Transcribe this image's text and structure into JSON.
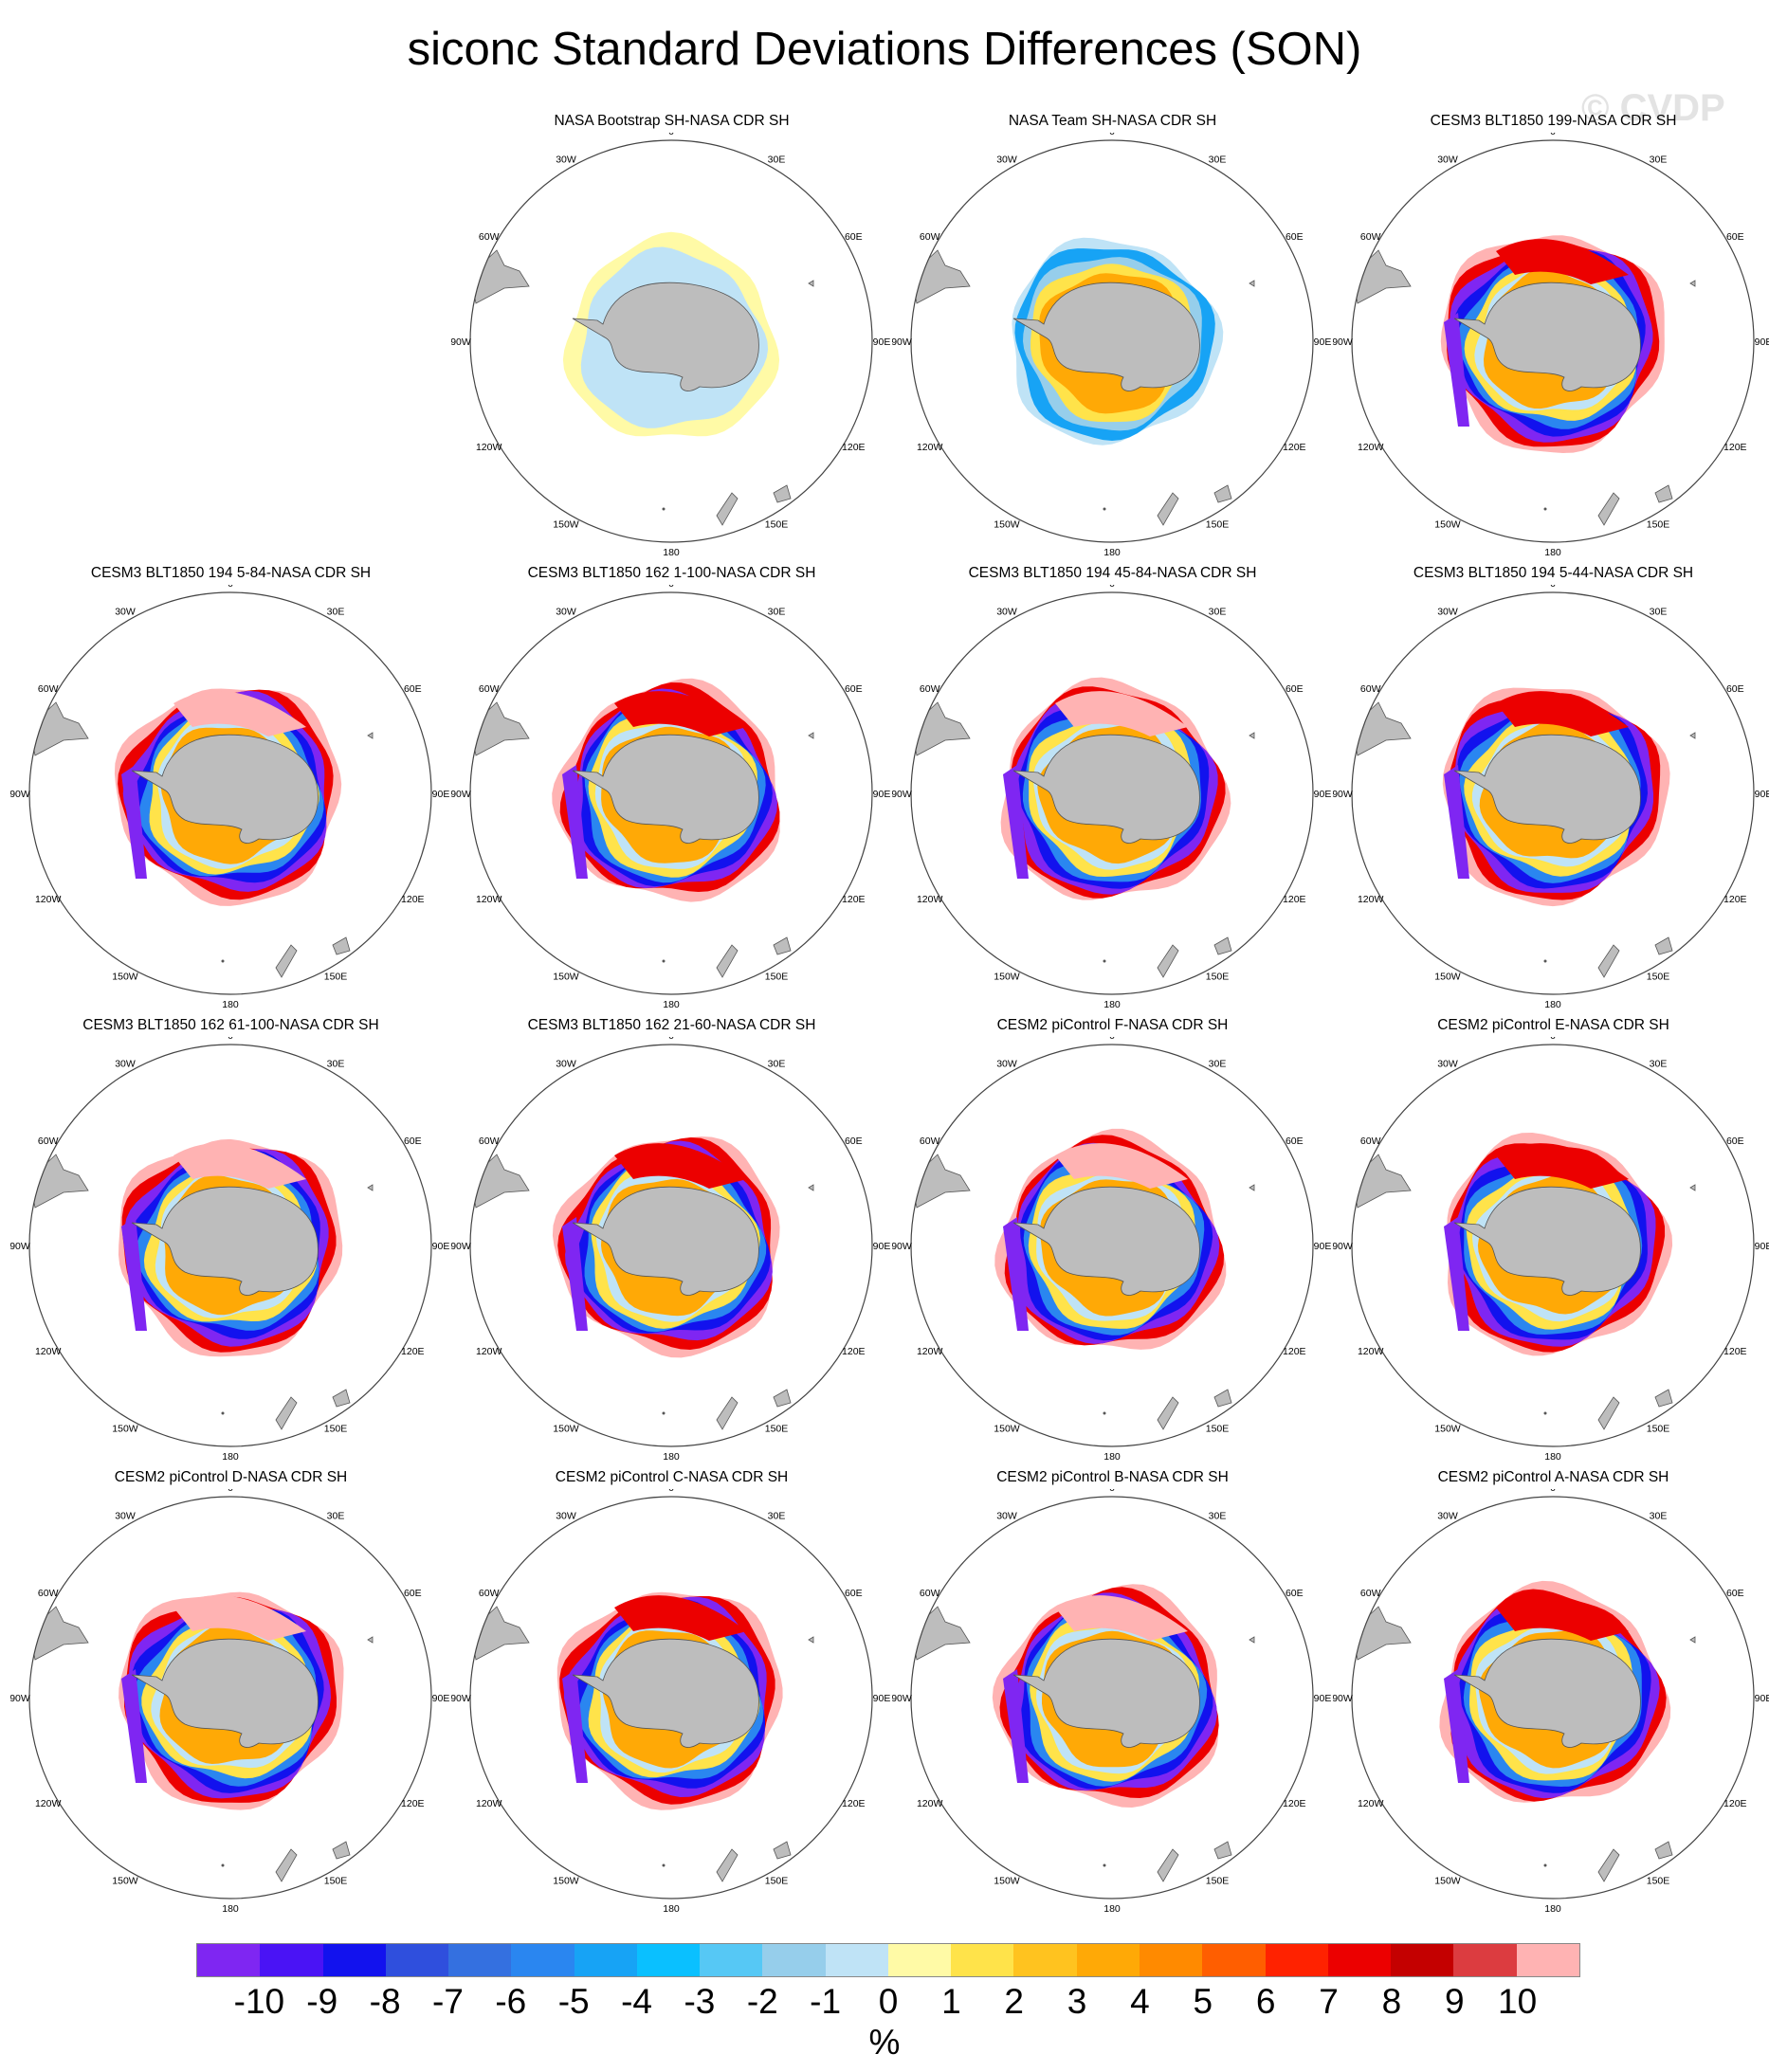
{
  "title": "siconc Standard Deviations Differences (SON)",
  "watermark": "© CVDP",
  "panels": [
    {
      "title": "NASA Bootstrap SH-NASA CDR SH",
      "pattern": "bootstrap"
    },
    {
      "title": "NASA Team SH-NASA CDR SH",
      "pattern": "team"
    },
    {
      "title": "CESM3 BLT1850 199-NASA CDR SH",
      "pattern": "model"
    },
    {
      "title": "CESM3 BLT1850 194 5-84-NASA CDR SH",
      "pattern": "model"
    },
    {
      "title": "CESM3 BLT1850 162 1-100-NASA CDR SH",
      "pattern": "model"
    },
    {
      "title": "CESM3 BLT1850 194 45-84-NASA CDR SH",
      "pattern": "model"
    },
    {
      "title": "CESM3 BLT1850 194 5-44-NASA CDR SH",
      "pattern": "model"
    },
    {
      "title": "CESM3 BLT1850 162 61-100-NASA CDR SH",
      "pattern": "model"
    },
    {
      "title": "CESM3 BLT1850 162 21-60-NASA CDR SH",
      "pattern": "model"
    },
    {
      "title": "CESM2 piControl F-NASA CDR SH",
      "pattern": "model"
    },
    {
      "title": "CESM2 piControl E-NASA CDR SH",
      "pattern": "model"
    },
    {
      "title": "CESM2 piControl D-NASA CDR SH",
      "pattern": "model"
    },
    {
      "title": "CESM2 piControl C-NASA CDR SH",
      "pattern": "model"
    },
    {
      "title": "CESM2 piControl B-NASA CDR SH",
      "pattern": "model"
    },
    {
      "title": "CESM2 piControl A-NASA CDR SH",
      "pattern": "model"
    }
  ],
  "longitude_labels": [
    "0",
    "30E",
    "60E",
    "90E",
    "120E",
    "150E",
    "180",
    "150W",
    "120W",
    "90W",
    "60W",
    "30W"
  ],
  "colorbar": {
    "colors": [
      "#7f26f2",
      "#4a13f5",
      "#1212ee",
      "#2f4fdd",
      "#3470e0",
      "#2a86f0",
      "#17a3f5",
      "#0ac0ff",
      "#56c8f5",
      "#96ceeb",
      "#bfe3f6",
      "#fffaa6",
      "#ffe34a",
      "#ffc31f",
      "#ffa906",
      "#ff8a00",
      "#ff5e00",
      "#ff2200",
      "#ec0000",
      "#c40000",
      "#dc3c40",
      "#ffb3b3"
    ],
    "labels": [
      "-10",
      "-9",
      "-8",
      "-7",
      "-6",
      "-5",
      "-4",
      "-3",
      "-2",
      "-1",
      "0",
      "1",
      "2",
      "3",
      "4",
      "5",
      "6",
      "7",
      "8",
      "9",
      "10"
    ],
    "unit": "%"
  },
  "land_color": "#bdbdbd"
}
